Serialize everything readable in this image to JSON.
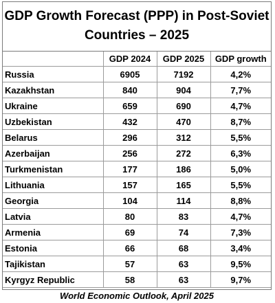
{
  "title_line1": "GDP Growth Forecast (PPP) in Post-Soviet",
  "title_line2": "Countries – 2025",
  "headers": [
    "",
    "GDP 2024",
    "GDP 2025",
    "GDP growth"
  ],
  "source": "World Economic Outlook, April 2025",
  "chart_data": {
    "type": "table",
    "title": "GDP Growth Forecast (PPP) in Post-Soviet Countries – 2025",
    "columns": [
      "",
      "GDP 2024",
      "GDP 2025",
      "GDP growth"
    ],
    "rows": [
      [
        "Russia",
        "6905",
        "7192",
        "4,2%"
      ],
      [
        "Kazakhstan",
        "840",
        "904",
        "7,7%"
      ],
      [
        "Ukraine",
        "659",
        "690",
        "4,7%"
      ],
      [
        "Uzbekistan",
        "432",
        "470",
        "8,7%"
      ],
      [
        "Belarus",
        "296",
        "312",
        "5,5%"
      ],
      [
        "Azerbaijan",
        "256",
        "272",
        "6,3%"
      ],
      [
        "Turkmenistan",
        "177",
        "186",
        "5,0%"
      ],
      [
        "Lithuania",
        "157",
        "165",
        "5,5%"
      ],
      [
        "Georgia",
        "104",
        "114",
        "8,8%"
      ],
      [
        "Latvia",
        "80",
        "83",
        "4,7%"
      ],
      [
        "Armenia",
        "69",
        "74",
        "7,3%"
      ],
      [
        "Estonia",
        "66",
        "68",
        "3,4%"
      ],
      [
        "Tajikistan",
        "57",
        "63",
        "9,5%"
      ],
      [
        "Kyrgyz Republic",
        "58",
        "63",
        "9,7%"
      ]
    ],
    "source": "World Economic Outlook, April 2025"
  }
}
